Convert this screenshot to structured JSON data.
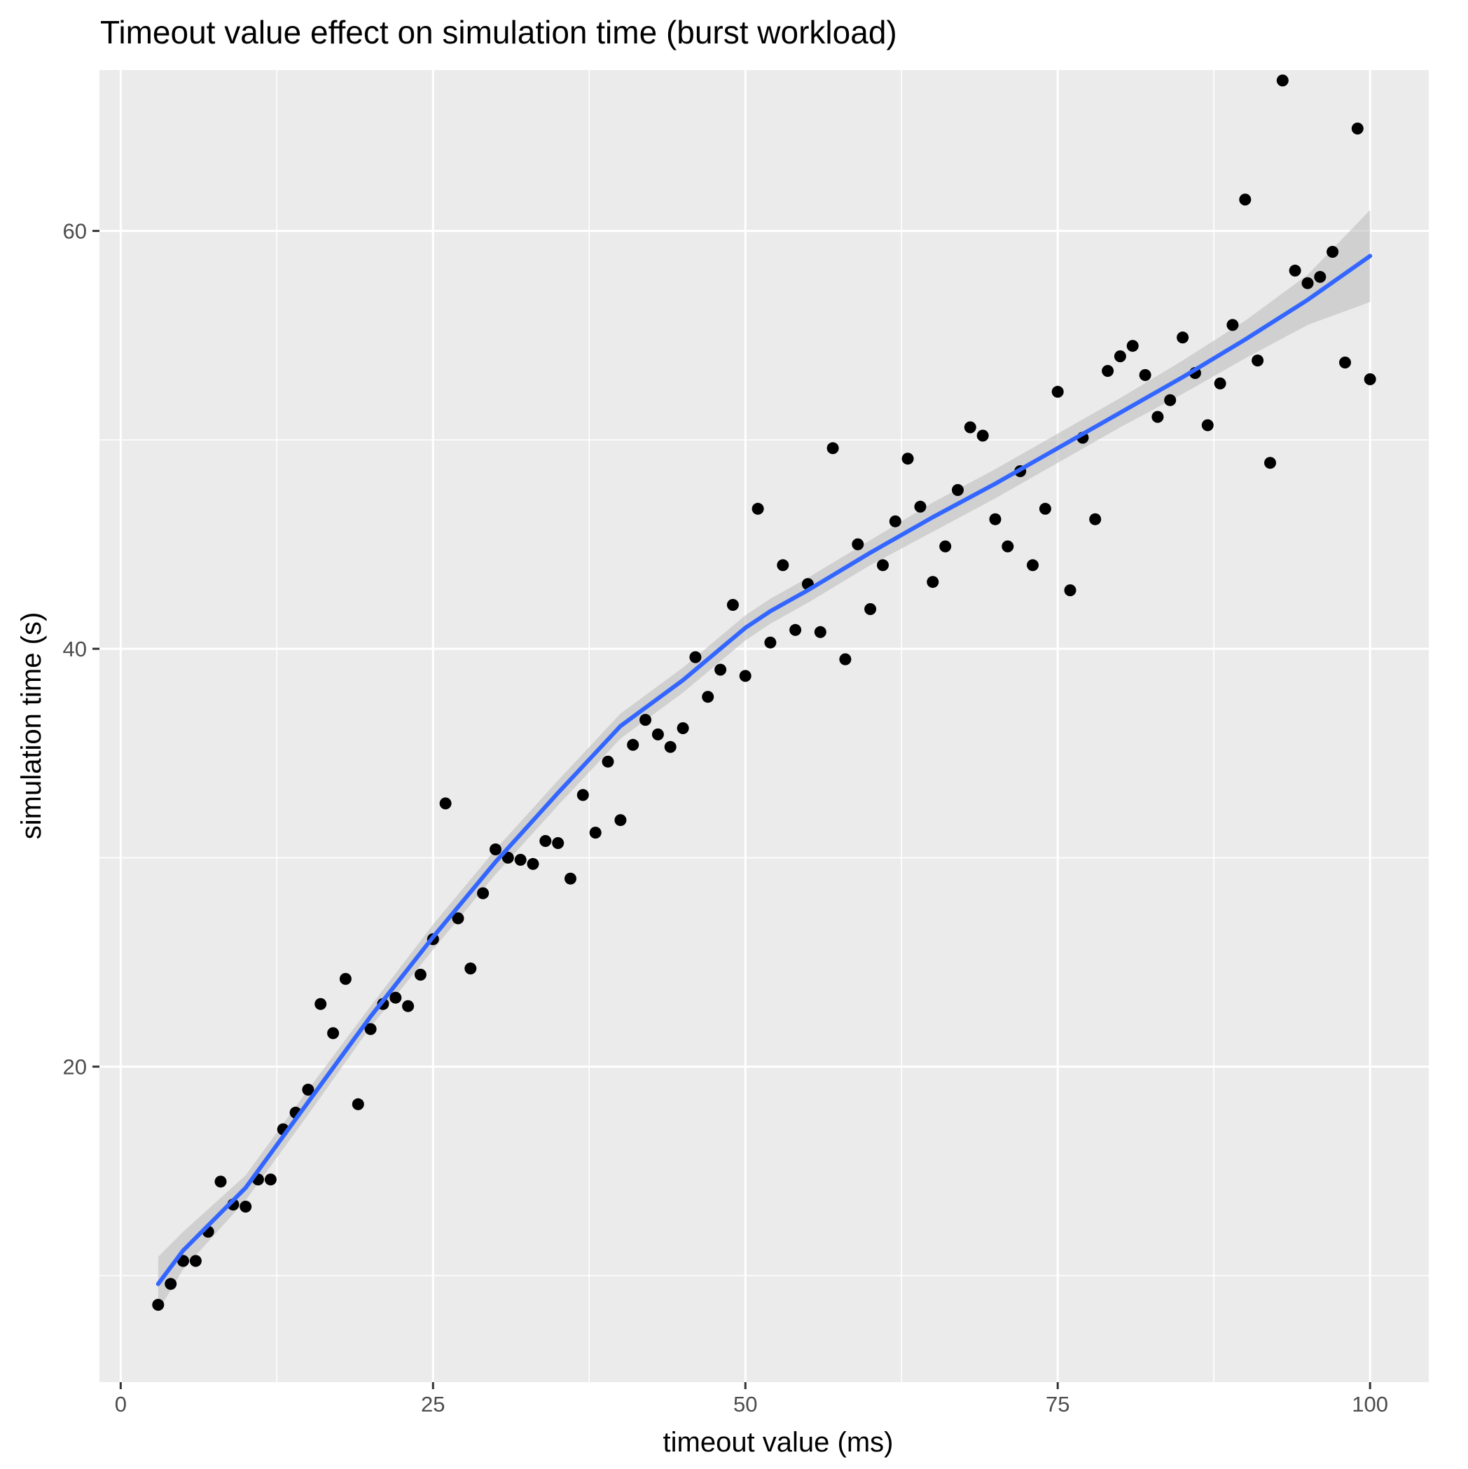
{
  "chart_data": {
    "type": "scatter",
    "title": "Timeout value effect on simulation time (burst workload)",
    "xlabel": "timeout value (ms)",
    "ylabel": "simulation time (s)",
    "xlim": [
      -1.7,
      104.7
    ],
    "ylim": [
      4.9,
      67.7
    ],
    "x_ticks": [
      0,
      25,
      50,
      75,
      100
    ],
    "y_ticks": [
      20,
      40,
      60
    ],
    "grid": true,
    "legend": "none",
    "colors": {
      "panel": "#EBEBEB",
      "grid": "#FFFFFF",
      "point": "#000000",
      "smooth_line": "#3366FF",
      "ribbon": "#BEBEBE"
    },
    "series": [
      {
        "type": "scatter",
        "x": [
          3,
          4,
          5,
          6,
          7,
          8,
          9,
          10,
          11,
          12,
          13,
          14,
          15,
          16,
          17,
          18,
          19,
          20,
          21,
          22,
          23,
          24,
          25,
          26,
          27,
          28,
          29,
          30,
          31,
          32,
          33,
          34,
          35,
          36,
          37,
          38,
          39,
          40,
          41,
          42,
          43,
          44,
          45,
          46,
          47,
          48,
          49,
          50,
          51,
          52,
          53,
          54,
          55,
          56,
          57,
          58,
          59,
          60,
          61,
          62,
          63,
          64,
          65,
          66,
          67,
          68,
          69,
          70,
          71,
          72,
          73,
          74,
          75,
          76,
          77,
          78,
          79,
          80,
          81,
          82,
          83,
          84,
          85,
          86,
          87,
          88,
          89,
          90,
          91,
          92,
          93,
          94,
          95,
          96,
          97,
          98,
          99,
          100
        ],
        "y": [
          8.6,
          9.6,
          10.7,
          10.7,
          12.1,
          14.5,
          13.4,
          13.3,
          14.6,
          14.6,
          17.0,
          17.8,
          18.9,
          23.0,
          21.6,
          24.2,
          18.2,
          21.8,
          23.0,
          23.3,
          22.9,
          24.4,
          26.1,
          32.6,
          27.1,
          24.7,
          28.3,
          30.4,
          30.0,
          29.9,
          29.7,
          30.8,
          30.7,
          29.0,
          33.0,
          31.2,
          34.6,
          31.8,
          35.4,
          36.6,
          35.9,
          35.3,
          36.2,
          39.6,
          37.7,
          39.0,
          42.1,
          38.7,
          46.7,
          40.3,
          44.0,
          40.9,
          43.1,
          40.8,
          49.6,
          39.5,
          45.0,
          41.9,
          44.0,
          46.1,
          49.1,
          46.8,
          43.2,
          44.9,
          47.6,
          50.6,
          50.2,
          46.2,
          44.9,
          48.5,
          44.0,
          46.7,
          52.3,
          42.8,
          50.1,
          46.2,
          53.3,
          54.0,
          54.5,
          53.1,
          51.1,
          51.9,
          54.9,
          53.2,
          50.7,
          52.7,
          55.5,
          61.5,
          53.8,
          48.9,
          67.2,
          58.1,
          57.5,
          57.8,
          59.0,
          53.7,
          64.9,
          52.9
        ]
      },
      {
        "type": "line",
        "x": [
          3,
          5,
          10,
          15,
          20,
          25,
          30,
          35,
          40,
          45,
          48,
          50,
          52,
          55,
          60,
          65,
          70,
          75,
          80,
          85,
          90,
          95,
          100
        ],
        "y": [
          9.6,
          11.2,
          14.2,
          18.3,
          22.4,
          26.2,
          29.8,
          33.1,
          36.3,
          38.5,
          40.0,
          41.0,
          41.8,
          42.8,
          44.6,
          46.3,
          47.9,
          49.6,
          51.3,
          53.0,
          54.8,
          56.7,
          58.8
        ]
      },
      {
        "type": "ribbon",
        "x": [
          3,
          5,
          10,
          15,
          20,
          25,
          30,
          35,
          40,
          45,
          48,
          50,
          52,
          55,
          60,
          65,
          70,
          75,
          80,
          85,
          90,
          95,
          100
        ],
        "lower": [
          8.3,
          10.3,
          13.6,
          17.7,
          21.9,
          25.6,
          29.2,
          32.5,
          35.7,
          37.9,
          39.4,
          40.4,
          41.2,
          42.2,
          44.0,
          45.6,
          47.2,
          48.9,
          50.6,
          52.2,
          53.9,
          55.5,
          56.6
        ],
        "upper": [
          10.9,
          12.1,
          14.8,
          18.9,
          22.9,
          26.8,
          30.4,
          33.7,
          36.9,
          39.1,
          40.6,
          41.6,
          42.4,
          43.4,
          45.2,
          47.0,
          48.6,
          50.3,
          52.0,
          53.8,
          55.7,
          57.9,
          61.0
        ]
      }
    ]
  }
}
